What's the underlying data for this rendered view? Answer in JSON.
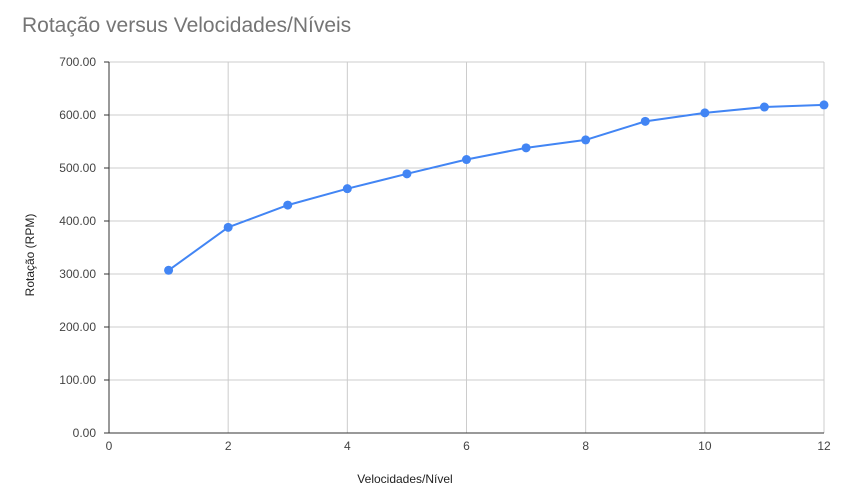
{
  "chart_data": {
    "type": "line",
    "title": "Rotação versus Velocidades/Níveis",
    "xlabel": "Velocidades/Nível",
    "ylabel": "Rotação (RPM)",
    "xlim": [
      0,
      12
    ],
    "ylim": [
      0,
      700
    ],
    "xticks": [
      "0",
      "2",
      "4",
      "6",
      "8",
      "10",
      "12"
    ],
    "yticks": [
      "0.00",
      "100.00",
      "200.00",
      "300.00",
      "400.00",
      "500.00",
      "600.00",
      "700.00"
    ],
    "grid": true,
    "legend": "none",
    "series": [
      {
        "color": "#4285F4",
        "x": [
          1,
          2,
          3,
          4,
          5,
          6,
          7,
          8,
          9,
          10,
          11,
          12
        ],
        "y": [
          307,
          388,
          430,
          461,
          489,
          516,
          538,
          553,
          588,
          604,
          615,
          619
        ]
      }
    ]
  }
}
